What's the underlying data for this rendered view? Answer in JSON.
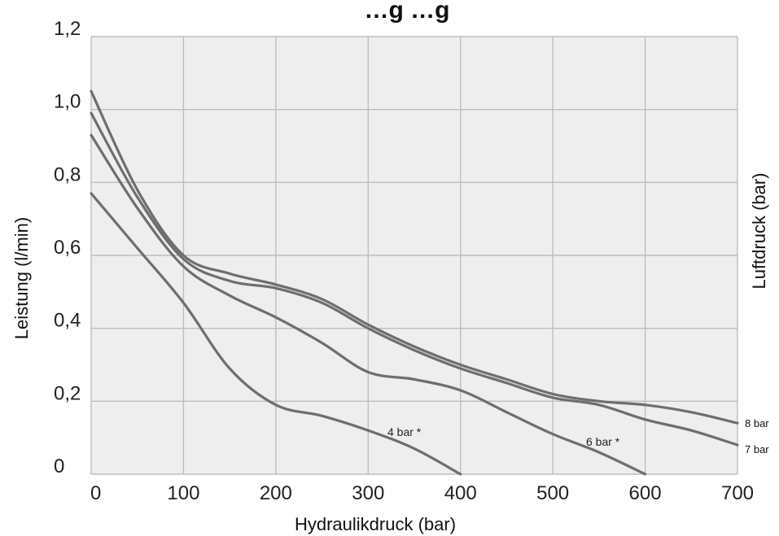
{
  "chart_data": {
    "type": "line",
    "title": "…g  …g",
    "xlabel": "Hydraulikdruck (bar)",
    "ylabel": "Leistung (l/min)",
    "ylabel_right": "Luftdruck (bar)",
    "xlim": [
      0,
      700
    ],
    "ylim": [
      0,
      1.2
    ],
    "x_ticks": [
      "0",
      "100",
      "200",
      "300",
      "400",
      "500",
      "600",
      "700"
    ],
    "y_ticks": [
      "0",
      "0,2",
      "0,4",
      "0,6",
      "0,8",
      "1,0",
      "1,2"
    ],
    "grid": true,
    "series": [
      {
        "name": "4 bar *",
        "label_pos": "inline",
        "points": [
          [
            0,
            0.77
          ],
          [
            50,
            0.62
          ],
          [
            100,
            0.47
          ],
          [
            150,
            0.29
          ],
          [
            200,
            0.19
          ],
          [
            250,
            0.16
          ],
          [
            300,
            0.12
          ],
          [
            350,
            0.07
          ],
          [
            400,
            0.0
          ]
        ]
      },
      {
        "name": "6 bar *",
        "label_pos": "inline",
        "points": [
          [
            0,
            0.93
          ],
          [
            50,
            0.73
          ],
          [
            100,
            0.57
          ],
          [
            150,
            0.49
          ],
          [
            200,
            0.43
          ],
          [
            250,
            0.36
          ],
          [
            300,
            0.28
          ],
          [
            350,
            0.26
          ],
          [
            400,
            0.23
          ],
          [
            450,
            0.17
          ],
          [
            500,
            0.11
          ],
          [
            550,
            0.06
          ],
          [
            600,
            0.0
          ]
        ]
      },
      {
        "name": "7 bar",
        "label_pos": "right",
        "points": [
          [
            0,
            0.99
          ],
          [
            50,
            0.76
          ],
          [
            100,
            0.59
          ],
          [
            150,
            0.53
          ],
          [
            200,
            0.51
          ],
          [
            250,
            0.47
          ],
          [
            300,
            0.4
          ],
          [
            350,
            0.34
          ],
          [
            400,
            0.29
          ],
          [
            450,
            0.25
          ],
          [
            500,
            0.21
          ],
          [
            550,
            0.19
          ],
          [
            600,
            0.15
          ],
          [
            650,
            0.12
          ],
          [
            700,
            0.08
          ]
        ]
      },
      {
        "name": "8 bar",
        "label_pos": "right",
        "points": [
          [
            0,
            1.05
          ],
          [
            50,
            0.78
          ],
          [
            100,
            0.6
          ],
          [
            150,
            0.55
          ],
          [
            200,
            0.52
          ],
          [
            250,
            0.48
          ],
          [
            300,
            0.41
          ],
          [
            350,
            0.35
          ],
          [
            400,
            0.3
          ],
          [
            450,
            0.26
          ],
          [
            500,
            0.22
          ],
          [
            550,
            0.2
          ],
          [
            600,
            0.19
          ],
          [
            650,
            0.17
          ],
          [
            700,
            0.14
          ]
        ]
      }
    ]
  },
  "colors": {
    "curve": "#6e6e6e",
    "grid": "#bdbdbd",
    "plot_bg": "#eeeeee",
    "text": "#222222"
  }
}
